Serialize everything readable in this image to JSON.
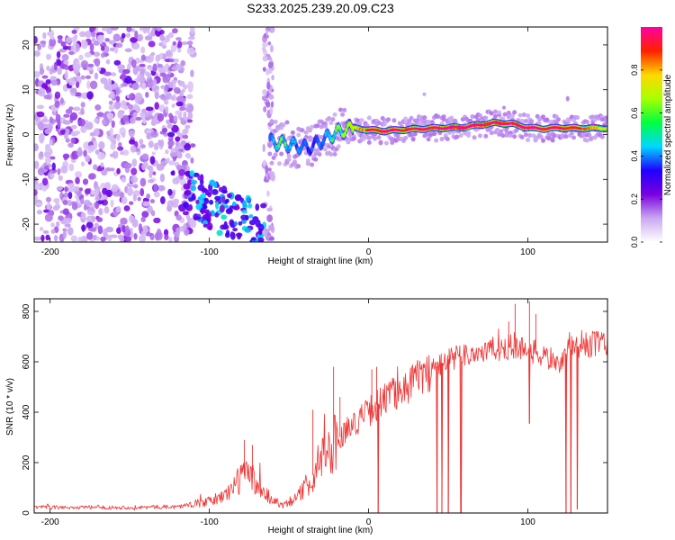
{
  "title": "S233.2025.239.20.09.C23",
  "chart_data": [
    {
      "type": "heatmap",
      "xlabel": "Height of straight line (km)",
      "ylabel": "Frequency (Hz)",
      "xlim": [
        -210,
        150
      ],
      "ylim": [
        -24,
        24
      ],
      "xticks": [
        -200,
        -100,
        0,
        100
      ],
      "yticks": [
        -20,
        -10,
        0,
        10,
        20
      ],
      "colorbar": {
        "label": "Normalized spectral amplitude",
        "range": [
          0,
          1
        ],
        "ticks": [
          "0.0",
          "0.2",
          "0.4",
          "0.6",
          "0.8"
        ],
        "tick_values": [
          0.0,
          0.2,
          0.4,
          0.6,
          0.8
        ],
        "colors": [
          "#ffffff",
          "#c9a8f0",
          "#7a00e0",
          "#1f00ff",
          "#00d8ff",
          "#00ff40",
          "#a8ff00",
          "#ffd800",
          "#ff2000",
          "#ff00a0"
        ]
      },
      "features": {
        "noise_region_km": [
          -210,
          -120
        ],
        "lower_branch": {
          "x": [
            -115,
            -65
          ],
          "freq_hz": [
            -13,
            -21
          ],
          "amplitude": 0.35
        },
        "main_ridge": {
          "x": [
            -62,
            -55,
            -45,
            -38,
            -30,
            -20,
            -10,
            0,
            10,
            20,
            30,
            40,
            50,
            60,
            70,
            80,
            90,
            100,
            110,
            120,
            130,
            140,
            150
          ],
          "freq_hz": [
            -1.5,
            -2,
            -2.5,
            -3,
            -1.5,
            0.5,
            1.5,
            1,
            0.8,
            1,
            1.2,
            1.4,
            1.5,
            1.6,
            2.2,
            2.6,
            2.4,
            1.5,
            1.3,
            1.5,
            1.4,
            1.4,
            1.4
          ],
          "amplitude": [
            0.4,
            0.45,
            0.4,
            0.35,
            0.4,
            0.45,
            0.55,
            0.7,
            0.8,
            0.75,
            0.75,
            0.78,
            0.82,
            0.88,
            0.8,
            0.82,
            0.78,
            0.8,
            0.75,
            0.8,
            0.75,
            0.62,
            0.55
          ]
        }
      }
    },
    {
      "type": "line",
      "xlabel": "Height of straight line (km)",
      "ylabel": "SNR (10 * v/v)",
      "xlim": [
        -210,
        150
      ],
      "ylim": [
        0,
        850
      ],
      "xticks": [
        -200,
        -100,
        0,
        100
      ],
      "yticks": [
        0,
        200,
        400,
        600,
        800
      ],
      "color": "#ee3333",
      "trend": {
        "x": [
          -210,
          -150,
          -120,
          -100,
          -90,
          -80,
          -75,
          -70,
          -65,
          -60,
          -55,
          -50,
          -45,
          -40,
          -35,
          -30,
          -25,
          -20,
          -15,
          -10,
          -5,
          0,
          5,
          10,
          15,
          20,
          25,
          30,
          40,
          50,
          60,
          70,
          80,
          90,
          100,
          110,
          120,
          125,
          130,
          140,
          150
        ],
        "y": [
          22,
          22,
          25,
          45,
          70,
          140,
          160,
          110,
          80,
          50,
          35,
          45,
          60,
          100,
          150,
          215,
          255,
          290,
          320,
          350,
          375,
          400,
          430,
          450,
          470,
          490,
          510,
          530,
          570,
          610,
          625,
          640,
          650,
          660,
          650,
          620,
          600,
          640,
          660,
          670,
          675
        ]
      },
      "spikes": [
        {
          "x": -78,
          "y": 290
        },
        {
          "x": -73,
          "y": 270
        },
        {
          "x": -35,
          "y": 410
        },
        {
          "x": -22,
          "y": 580
        },
        {
          "x": -18,
          "y": 460
        },
        {
          "x": 2,
          "y": 570
        },
        {
          "x": 5,
          "y": 580
        },
        {
          "x": 88,
          "y": 760
        },
        {
          "x": 92,
          "y": 830
        },
        {
          "x": 101,
          "y": 840
        },
        {
          "x": 105,
          "y": 790
        }
      ],
      "dropouts": [
        {
          "x": 6,
          "y": 0
        },
        {
          "x": 43,
          "y": 0
        },
        {
          "x": 46,
          "y": 0
        },
        {
          "x": 50,
          "y": 0
        },
        {
          "x": 58,
          "y": 0
        },
        {
          "x": 101,
          "y": 355
        },
        {
          "x": 124,
          "y": 0
        },
        {
          "x": 127,
          "y": 0
        },
        {
          "x": 131,
          "y": 15
        }
      ]
    }
  ]
}
